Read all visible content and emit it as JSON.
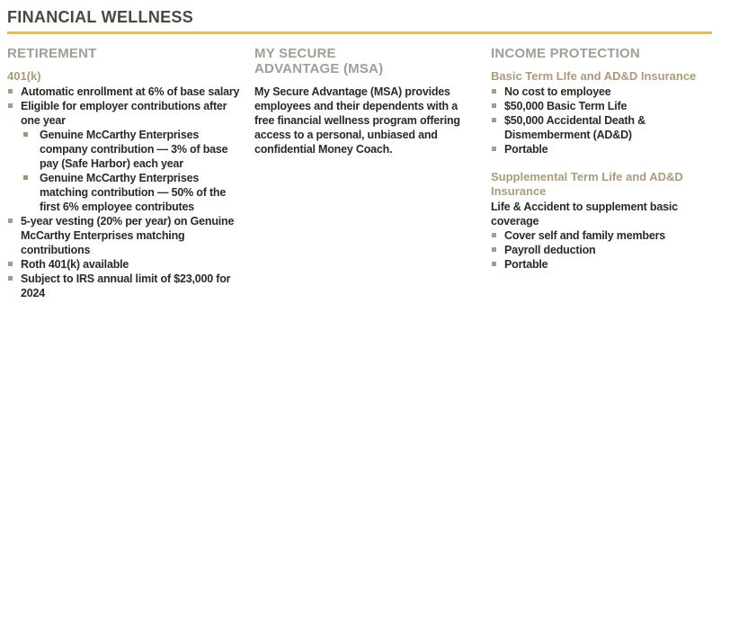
{
  "page": {
    "title": "FINANCIAL WELLNESS"
  },
  "theme": {
    "background": "#FFFFFF",
    "title_color": "#4A4843",
    "accent_rule_color": "#E8C227",
    "column_heading_color": "#A29D95",
    "subheading_color": "#AA9C7A",
    "bullet_square_color": "#A89C7E",
    "body_text_color": "#2B2A26"
  },
  "columns": [
    {
      "heading": "RETIREMENT",
      "sections": [
        {
          "subheading": "401(k)",
          "bullets": [
            {
              "level": 1,
              "text": "Automatic enrollment at 6% of base salary"
            },
            {
              "level": 1,
              "text": "Eligible for employer contributions after one year"
            },
            {
              "level": 2,
              "text": "Genuine McCarthy Enterprises company contribution — 3% of base pay (Safe Harbor) each year"
            },
            {
              "level": 2,
              "text": "Genuine McCarthy Enterprises matching contribution — 50% of the first 6% employee contributes"
            },
            {
              "level": 1,
              "text": "5-year vesting (20% per year) on Genuine McCarthy Enterprises matching contributions"
            },
            {
              "level": 1,
              "text": "Roth 401(k) available"
            },
            {
              "level": 1,
              "text": "Subject to IRS annual limit of $23,000 for 2024"
            }
          ]
        }
      ]
    },
    {
      "heading": "MY SECURE ADVANTAGE (MSA)",
      "sections": [
        {
          "paragraph": "My Secure Advantage (MSA) provides employees and their dependents with a free financial wellness program offering access to a personal, unbiased and confidential Money Coach."
        }
      ]
    },
    {
      "heading": "INCOME PROTECTION",
      "sections": [
        {
          "subheading": "Basic Term LIfe and AD&D Insurance",
          "bullets": [
            {
              "level": 1,
              "text": "No cost to employee"
            },
            {
              "level": 1,
              "text": "$50,000 Basic Term Life"
            },
            {
              "level": 1,
              "text": "$50,000 Accidental Death & Dismemberment (AD&D)"
            },
            {
              "level": 1,
              "text": "Portable"
            }
          ]
        },
        {
          "subheading": "Supplemental Term Life and AD&D Insurance",
          "intro": "Life & Accident to supplement basic coverage",
          "bullets": [
            {
              "level": 1,
              "text": "Cover self and family members"
            },
            {
              "level": 1,
              "text": "Payroll deduction"
            },
            {
              "level": 1,
              "text": "Portable"
            }
          ]
        }
      ]
    }
  ]
}
